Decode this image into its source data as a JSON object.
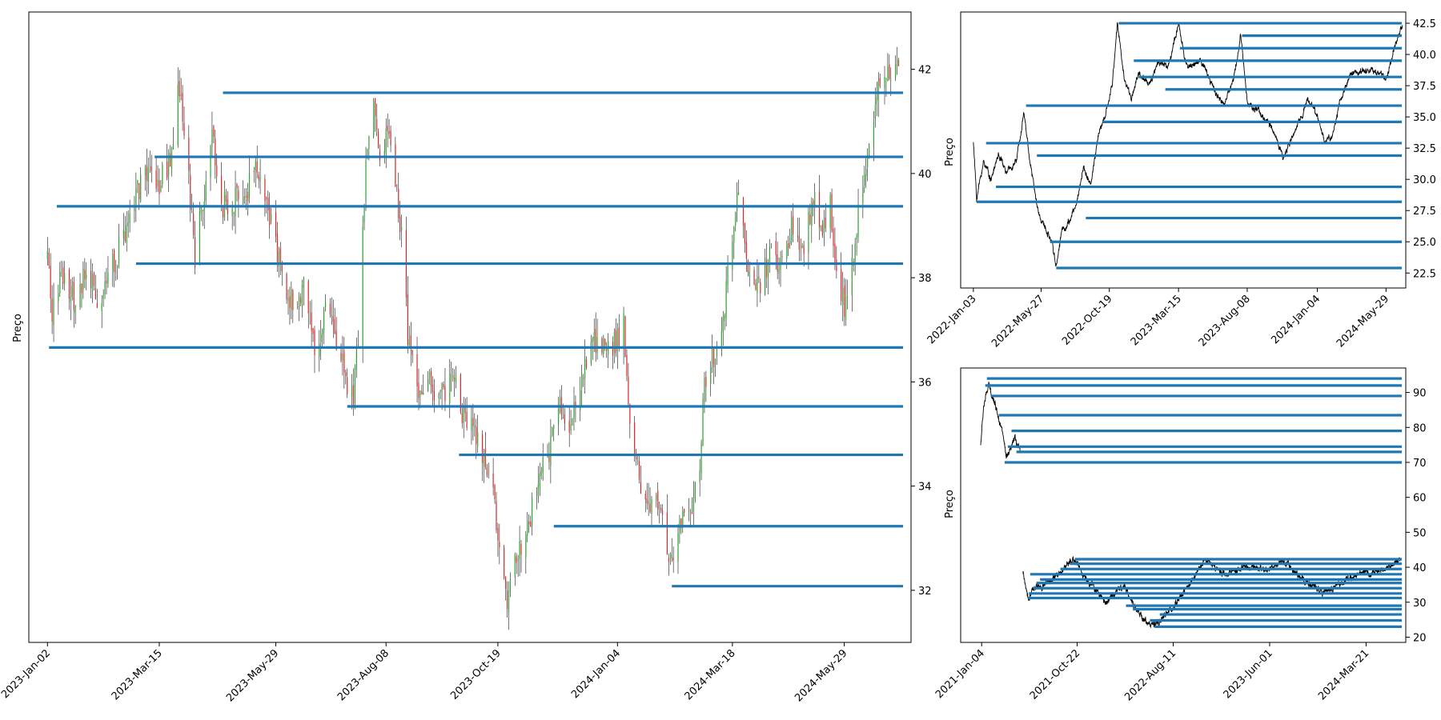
{
  "chart_data": [
    {
      "id": "main",
      "type": "candlestick",
      "ylabel": "Preço",
      "ylim": [
        31.0,
        43.1
      ],
      "y_ticks": [
        32,
        34,
        36,
        38,
        40,
        42
      ],
      "y_axis_side": "right",
      "x_range": [
        "2022-12-21",
        "2024-07-11"
      ],
      "x_ticks": [
        "2023-01-02",
        "2023-03-15",
        "2023-05-29",
        "2023-08-08",
        "2023-10-19",
        "2024-01-04",
        "2024-03-18",
        "2024-05-29"
      ],
      "x_tick_labels": [
        "2023-Jan-02",
        "2023-Mar-15",
        "2023-May-29",
        "2023-Aug-08",
        "2023-Oct-19",
        "2024-Jan-04",
        "2024-Mar-18",
        "2024-May-29"
      ],
      "colors": {
        "up": "#2ca02c",
        "down": "#d62728",
        "level_line": "#1f77b4"
      },
      "price_path": [
        [
          "2023-01-02",
          38.4
        ],
        [
          "2023-01-05",
          37.4
        ],
        [
          "2023-01-12",
          38.1
        ],
        [
          "2023-01-20",
          37.5
        ],
        [
          "2023-01-27",
          38.3
        ],
        [
          "2023-02-03",
          37.4
        ],
        [
          "2023-02-10",
          38.0
        ],
        [
          "2023-02-17",
          38.5
        ],
        [
          "2023-02-24",
          39.1
        ],
        [
          "2023-03-02",
          39.7
        ],
        [
          "2023-03-09",
          40.0
        ],
        [
          "2023-03-15",
          39.8
        ],
        [
          "2023-03-22",
          40.3
        ],
        [
          "2023-03-28",
          41.7
        ],
        [
          "2023-04-03",
          39.8
        ],
        [
          "2023-04-07",
          38.3
        ],
        [
          "2023-04-12",
          39.5
        ],
        [
          "2023-04-18",
          40.9
        ],
        [
          "2023-04-24",
          39.4
        ],
        [
          "2023-05-03",
          39.5
        ],
        [
          "2023-05-10",
          39.6
        ],
        [
          "2023-05-17",
          40.2
        ],
        [
          "2023-05-24",
          39.2
        ],
        [
          "2023-06-02",
          38.1
        ],
        [
          "2023-06-09",
          37.5
        ],
        [
          "2023-06-16",
          37.8
        ],
        [
          "2023-06-23",
          36.6
        ],
        [
          "2023-06-30",
          37.4
        ],
        [
          "2023-07-06",
          36.9
        ],
        [
          "2023-07-12",
          36.2
        ],
        [
          "2023-07-18",
          35.7
        ],
        [
          "2023-07-22",
          37.3
        ],
        [
          "2023-07-26",
          40.2
        ],
        [
          "2023-07-31",
          41.4
        ],
        [
          "2023-08-04",
          40.1
        ],
        [
          "2023-08-10",
          40.9
        ],
        [
          "2023-08-15",
          39.7
        ],
        [
          "2023-08-18",
          38.7
        ],
        [
          "2023-08-22",
          36.9
        ],
        [
          "2023-08-28",
          35.9
        ],
        [
          "2023-09-05",
          36.1
        ],
        [
          "2023-09-12",
          35.6
        ],
        [
          "2023-09-19",
          36.3
        ],
        [
          "2023-09-26",
          35.3
        ],
        [
          "2023-10-03",
          35.2
        ],
        [
          "2023-10-10",
          34.6
        ],
        [
          "2023-10-17",
          33.8
        ],
        [
          "2023-10-21",
          32.2
        ],
        [
          "2023-10-25",
          31.8
        ],
        [
          "2023-11-01",
          32.7
        ],
        [
          "2023-11-08",
          33.3
        ],
        [
          "2023-11-15",
          34.3
        ],
        [
          "2023-11-22",
          34.7
        ],
        [
          "2023-11-28",
          35.6
        ],
        [
          "2023-12-05",
          35.1
        ],
        [
          "2023-12-12",
          36.2
        ],
        [
          "2023-12-19",
          36.7
        ],
        [
          "2024-01-03",
          36.7
        ],
        [
          "2024-01-08",
          37.1
        ],
        [
          "2024-01-12",
          35.3
        ],
        [
          "2024-01-18",
          34.1
        ],
        [
          "2024-01-24",
          33.5
        ],
        [
          "2024-01-31",
          33.8
        ],
        [
          "2024-02-07",
          32.6
        ],
        [
          "2024-02-14",
          33.4
        ],
        [
          "2024-02-21",
          33.6
        ],
        [
          "2024-02-26",
          34.4
        ],
        [
          "2024-02-29",
          35.9
        ],
        [
          "2024-03-06",
          36.5
        ],
        [
          "2024-03-12",
          37.1
        ],
        [
          "2024-03-18",
          38.9
        ],
        [
          "2024-03-22",
          39.6
        ],
        [
          "2024-03-28",
          38.1
        ],
        [
          "2024-04-04",
          37.9
        ],
        [
          "2024-04-11",
          38.4
        ],
        [
          "2024-04-18",
          38.2
        ],
        [
          "2024-04-25",
          39.1
        ],
        [
          "2024-05-02",
          38.5
        ],
        [
          "2024-05-09",
          39.6
        ],
        [
          "2024-05-14",
          38.8
        ],
        [
          "2024-05-20",
          39.5
        ],
        [
          "2024-05-24",
          38.0
        ],
        [
          "2024-05-29",
          37.5
        ],
        [
          "2024-06-04",
          38.3
        ],
        [
          "2024-06-08",
          39.6
        ],
        [
          "2024-06-13",
          40.5
        ],
        [
          "2024-06-19",
          41.6
        ],
        [
          "2024-06-26",
          41.9
        ],
        [
          "2024-07-03",
          42.2
        ]
      ],
      "levels": [
        {
          "price": 41.55,
          "start": "2023-04-25"
        },
        {
          "price": 40.32,
          "start": "2023-03-12"
        },
        {
          "price": 39.37,
          "start": "2023-01-08"
        },
        {
          "price": 38.27,
          "start": "2023-02-28"
        },
        {
          "price": 36.66,
          "start": "2023-01-03"
        },
        {
          "price": 35.53,
          "start": "2023-07-14"
        },
        {
          "price": 34.6,
          "start": "2023-09-24"
        },
        {
          "price": 33.23,
          "start": "2023-11-24"
        },
        {
          "price": 32.08,
          "start": "2024-02-08"
        }
      ]
    },
    {
      "id": "top-right",
      "type": "line",
      "ylabel": "Preço",
      "ylim": [
        21.3,
        43.4
      ],
      "y_ticks": [
        22.5,
        25.0,
        27.5,
        30.0,
        32.5,
        35.0,
        37.5,
        40.0,
        42.5
      ],
      "y_tick_labels": [
        "22.5",
        "25.0",
        "27.5",
        "30.0",
        "32.5",
        "35.0",
        "37.5",
        "40.0",
        "42.5"
      ],
      "y_axis_side": "right",
      "x_range": [
        "2021-12-07",
        "2024-07-10"
      ],
      "x_ticks": [
        "2022-01-03",
        "2022-05-27",
        "2022-10-19",
        "2023-03-15",
        "2023-08-08",
        "2024-01-04",
        "2024-05-29"
      ],
      "x_tick_labels": [
        "2022-Jan-03",
        "2022-May-27",
        "2022-Oct-19",
        "2023-Mar-15",
        "2023-Aug-08",
        "2024-Jan-04",
        "2024-May-29"
      ],
      "colors": {
        "line": "#000000",
        "level_line": "#1f77b4"
      },
      "price_path": [
        [
          "2022-01-03",
          33.0
        ],
        [
          "2022-01-10",
          28.5
        ],
        [
          "2022-01-25",
          31.5
        ],
        [
          "2022-02-10",
          30.0
        ],
        [
          "2022-02-25",
          32.0
        ],
        [
          "2022-03-15",
          30.5
        ],
        [
          "2022-04-05",
          31.5
        ],
        [
          "2022-04-20",
          35.5
        ],
        [
          "2022-05-05",
          31.0
        ],
        [
          "2022-05-20",
          27.5
        ],
        [
          "2022-06-05",
          26.0
        ],
        [
          "2022-06-20",
          25.0
        ],
        [
          "2022-06-28",
          23.0
        ],
        [
          "2022-07-10",
          26.0
        ],
        [
          "2022-07-25",
          26.5
        ],
        [
          "2022-08-10",
          28.0
        ],
        [
          "2022-08-25",
          31.0
        ],
        [
          "2022-09-10",
          29.5
        ],
        [
          "2022-09-25",
          33.5
        ],
        [
          "2022-10-10",
          35.0
        ],
        [
          "2022-10-25",
          37.5
        ],
        [
          "2022-11-05",
          42.5
        ],
        [
          "2022-11-20",
          38.0
        ],
        [
          "2022-12-05",
          36.5
        ],
        [
          "2022-12-20",
          38.5
        ],
        [
          "2023-01-10",
          37.5
        ],
        [
          "2023-02-01",
          39.5
        ],
        [
          "2023-02-20",
          39.0
        ],
        [
          "2023-03-15",
          42.3
        ],
        [
          "2023-04-01",
          39.0
        ],
        [
          "2023-05-01",
          39.5
        ],
        [
          "2023-06-01",
          37.0
        ],
        [
          "2023-06-20",
          36.0
        ],
        [
          "2023-07-10",
          38.0
        ],
        [
          "2023-07-25",
          41.5
        ],
        [
          "2023-08-10",
          36.0
        ],
        [
          "2023-09-01",
          35.5
        ],
        [
          "2023-10-01",
          34.0
        ],
        [
          "2023-10-25",
          31.8
        ],
        [
          "2023-11-20",
          34.0
        ],
        [
          "2023-12-15",
          36.5
        ],
        [
          "2024-01-05",
          35.0
        ],
        [
          "2024-01-20",
          33.0
        ],
        [
          "2024-02-05",
          33.5
        ],
        [
          "2024-02-20",
          36.0
        ],
        [
          "2024-03-15",
          38.5
        ],
        [
          "2024-04-15",
          38.8
        ],
        [
          "2024-05-15",
          38.5
        ],
        [
          "2024-06-01",
          38.0
        ],
        [
          "2024-06-15",
          40.5
        ],
        [
          "2024-07-03",
          42.4
        ]
      ],
      "levels": [
        {
          "price": 42.5,
          "start": "2022-11-08"
        },
        {
          "price": 41.5,
          "start": "2023-07-28"
        },
        {
          "price": 40.5,
          "start": "2023-03-18"
        },
        {
          "price": 39.5,
          "start": "2022-12-10"
        },
        {
          "price": 38.2,
          "start": "2022-12-20"
        },
        {
          "price": 37.2,
          "start": "2023-02-15"
        },
        {
          "price": 35.9,
          "start": "2022-04-25"
        },
        {
          "price": 34.6,
          "start": "2022-10-05"
        },
        {
          "price": 32.9,
          "start": "2022-01-30"
        },
        {
          "price": 31.9,
          "start": "2022-05-18"
        },
        {
          "price": 29.4,
          "start": "2022-02-20"
        },
        {
          "price": 28.2,
          "start": "2022-01-10"
        },
        {
          "price": 26.9,
          "start": "2022-08-30"
        },
        {
          "price": 25.0,
          "start": "2022-06-15"
        },
        {
          "price": 22.9,
          "start": "2022-06-28"
        }
      ]
    },
    {
      "id": "bottom-right",
      "type": "line",
      "ylabel": "Preço",
      "ylim": [
        18.5,
        97.0
      ],
      "y_ticks": [
        20,
        30,
        40,
        50,
        60,
        70,
        80,
        90
      ],
      "y_axis_side": "right",
      "x_range": [
        "2020-11-01",
        "2024-07-20"
      ],
      "x_ticks": [
        "2021-01-04",
        "2021-10-22",
        "2022-08-11",
        "2023-06-01",
        "2024-03-21"
      ],
      "x_tick_labels": [
        "2021-Jan-04",
        "2021-Oct-22",
        "2022-Aug-11",
        "2023-Jun-01",
        "2024-Mar-21"
      ],
      "colors": {
        "line": "#000000",
        "level_line": "#1f77b4"
      },
      "price_segments": [
        [
          [
            "2021-01-01",
            75.0
          ],
          [
            "2021-01-10",
            86.0
          ],
          [
            "2021-01-25",
            92.0
          ],
          [
            "2021-02-10",
            88.0
          ],
          [
            "2021-02-25",
            83.0
          ],
          [
            "2021-03-10",
            78.0
          ],
          [
            "2021-03-20",
            71.0
          ],
          [
            "2021-04-01",
            73.0
          ],
          [
            "2021-04-15",
            77.0
          ],
          [
            "2021-05-01",
            74.0
          ]
        ],
        [
          [
            "2021-05-10",
            39.0
          ],
          [
            "2021-05-25",
            31.0
          ],
          [
            "2021-06-15",
            34.0
          ],
          [
            "2021-07-15",
            35.0
          ],
          [
            "2021-08-15",
            37.0
          ],
          [
            "2021-09-15",
            40.0
          ],
          [
            "2021-10-15",
            42.3
          ],
          [
            "2021-11-15",
            37.0
          ],
          [
            "2021-12-15",
            34.0
          ],
          [
            "2022-01-15",
            30.0
          ],
          [
            "2022-02-15",
            32.5
          ],
          [
            "2022-03-15",
            35.0
          ],
          [
            "2022-04-15",
            28.5
          ],
          [
            "2022-05-15",
            25.0
          ],
          [
            "2022-06-15",
            23.0
          ],
          [
            "2022-07-15",
            26.0
          ],
          [
            "2022-08-15",
            29.0
          ],
          [
            "2022-09-15",
            33.5
          ],
          [
            "2022-10-15",
            37.0
          ],
          [
            "2022-11-15",
            42.5
          ],
          [
            "2023-01-15",
            38.0
          ],
          [
            "2023-03-15",
            40.0
          ],
          [
            "2023-05-15",
            39.0
          ],
          [
            "2023-07-15",
            41.5
          ],
          [
            "2023-09-15",
            36.0
          ],
          [
            "2023-11-15",
            33.0
          ],
          [
            "2024-01-15",
            36.0
          ],
          [
            "2024-03-15",
            38.5
          ],
          [
            "2024-05-15",
            39.0
          ],
          [
            "2024-07-03",
            42.4
          ]
        ]
      ],
      "levels": [
        {
          "price": 94.0,
          "start": "2021-01-20"
        },
        {
          "price": 92.0,
          "start": "2021-01-15"
        },
        {
          "price": 89.0,
          "start": "2021-02-01"
        },
        {
          "price": 83.5,
          "start": "2021-02-25"
        },
        {
          "price": 79.0,
          "start": "2021-04-05"
        },
        {
          "price": 74.5,
          "start": "2021-03-25"
        },
        {
          "price": 73.0,
          "start": "2021-04-20"
        },
        {
          "price": 70.0,
          "start": "2021-03-15"
        },
        {
          "price": 42.3,
          "start": "2021-10-15"
        },
        {
          "price": 41.0,
          "start": "2021-10-01"
        },
        {
          "price": 39.5,
          "start": "2021-09-01"
        },
        {
          "price": 38.0,
          "start": "2021-06-01"
        },
        {
          "price": 36.5,
          "start": "2021-07-01"
        },
        {
          "price": 35.5,
          "start": "2021-06-20"
        },
        {
          "price": 34.0,
          "start": "2021-06-10"
        },
        {
          "price": 32.5,
          "start": "2021-05-28"
        },
        {
          "price": 31.2,
          "start": "2021-05-25"
        },
        {
          "price": 29.0,
          "start": "2022-03-20"
        },
        {
          "price": 28.0,
          "start": "2022-04-10"
        },
        {
          "price": 26.5,
          "start": "2022-07-01"
        },
        {
          "price": 24.8,
          "start": "2022-06-01"
        },
        {
          "price": 23.0,
          "start": "2022-06-15"
        }
      ]
    }
  ]
}
